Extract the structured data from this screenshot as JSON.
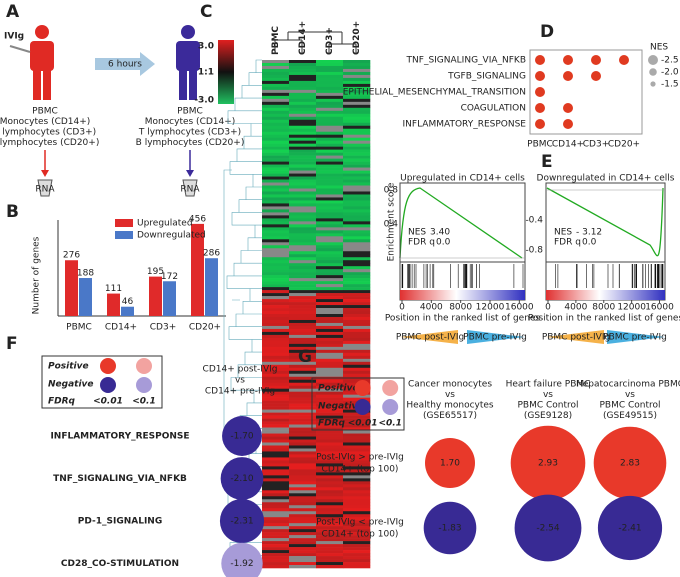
{
  "figure": {
    "colors": {
      "positive": "#e8392a",
      "negative": "#382a94",
      "positive_light": "#f2a3a0",
      "negative_light": "#a79bd8",
      "before": "#e02a24",
      "after": "#3b2a9a"
    },
    "A": {
      "letter": "A",
      "drug": "IVIg",
      "interval": "6 hours",
      "samples": [
        "PBMC",
        "Monocytes (CD14+)",
        "T lymphocytes (CD3+)",
        "B lymphocytes (CD20+)"
      ],
      "tube": "RNA"
    },
    "B": {
      "letter": "B",
      "y_label": "Number of genes",
      "categories": [
        "PBMC",
        "CD14+",
        "CD3+",
        "CD20+"
      ],
      "series": [
        {
          "name": "Upregulated",
          "color": "#e02a2a",
          "values": [
            276,
            111,
            195,
            456
          ]
        },
        {
          "name": "Downregulated",
          "color": "#4a78c8",
          "values": [
            188,
            46,
            172,
            286
          ]
        }
      ],
      "ylim": [
        0,
        500
      ]
    },
    "C": {
      "letter": "C",
      "scale_labels": [
        "3.0",
        "1:1",
        "-3.0"
      ],
      "columns": [
        "PBMC",
        "CD14+",
        "CD3+",
        "CD20+"
      ]
    },
    "D": {
      "letter": "D",
      "pathways": [
        "TNF_SIGNALING_VIA_NFKB",
        "TGFB_SIGNALING",
        "EPITHELIAL_MESENCHYMAL_TRANSITION",
        "COAGULATION",
        "INFLAMMATORY_RESPONSE"
      ],
      "columns": [
        "PBMC",
        "CD14+",
        "CD3+",
        "CD20+"
      ],
      "present": [
        [
          true,
          true,
          true,
          true
        ],
        [
          true,
          true,
          true,
          false
        ],
        [
          true,
          false,
          false,
          false
        ],
        [
          true,
          true,
          false,
          false
        ],
        [
          true,
          true,
          false,
          false
        ]
      ],
      "color": "#e03a20",
      "legend_title": "NES",
      "legend_labels": [
        "-2.5",
        "-2.0",
        "-1.5"
      ]
    },
    "E": {
      "letter": "E",
      "y_label": "Enrichment score",
      "x_label": "Position in the ranked list of genes",
      "xticks": [
        0,
        4000,
        8000,
        12000,
        16000
      ],
      "phenotypes": [
        "PBMC post-IVIg",
        "PBMC pre-IVIg"
      ],
      "nes_label": "NES",
      "fdr_label": "FDR q",
      "plots": [
        {
          "title": "Upregulated in CD14+ cells",
          "yticks": [
            0.8,
            0.4
          ],
          "nes": "3.40",
          "fdr": "0.0"
        },
        {
          "title": "Downregulated in CD14+ cells",
          "yticks": [
            -0.4,
            -0.8
          ],
          "nes": "- 3.12",
          "fdr": "0.0"
        }
      ]
    },
    "F": {
      "letter": "F",
      "legend": {
        "positive": "Positive",
        "negative": "Negative",
        "fdr": "FDRq",
        "sig": "<0.01",
        "nonsig": "<0.1"
      },
      "header": [
        "CD14+ post-IVIg",
        "vs",
        "CD14+ pre-IVIg"
      ],
      "pathways": [
        "INFLAMMATORY_RESPONSE",
        "TNF_SIGNALING_VIA_NFKB",
        "PD-1_SIGNALING",
        "CD28_CO-STIMULATION"
      ],
      "values": [
        -1.7,
        -2.1,
        -2.31,
        -1.92
      ],
      "value_labels": [
        "-1.70",
        "-2.10",
        "-2.31",
        "-1.92"
      ],
      "significant": [
        true,
        true,
        true,
        false
      ]
    },
    "G": {
      "letter": "G",
      "legend": {
        "positive": "Positive",
        "negative": "Negative",
        "fdr": "FDRq",
        "sig": "<0.01",
        "nonsig": "<0.1"
      },
      "columns": [
        [
          "Cancer monocytes",
          "vs",
          "Healthy monocytes",
          "(GSE65517)"
        ],
        [
          "Heart failure PBMC",
          "vs",
          "PBMC Control",
          "(GSE9128)"
        ],
        [
          "Hepatocarcinoma PBMC",
          "vs",
          "PBMC Control",
          "(GSE49515)"
        ]
      ],
      "rows": [
        [
          "Post-IVIg > pre-IVIg",
          "CD14+ (top 100)"
        ],
        [
          "Post-IVIg < pre-IVIg",
          "CD14+ (top 100)"
        ]
      ],
      "values": [
        [
          1.7,
          2.93,
          2.83
        ],
        [
          -1.83,
          -2.54,
          -2.41
        ]
      ],
      "value_labels": [
        [
          "1.70",
          "2.93",
          "2.83"
        ],
        [
          "-1.83",
          "-2.54",
          "-2.41"
        ]
      ]
    }
  }
}
